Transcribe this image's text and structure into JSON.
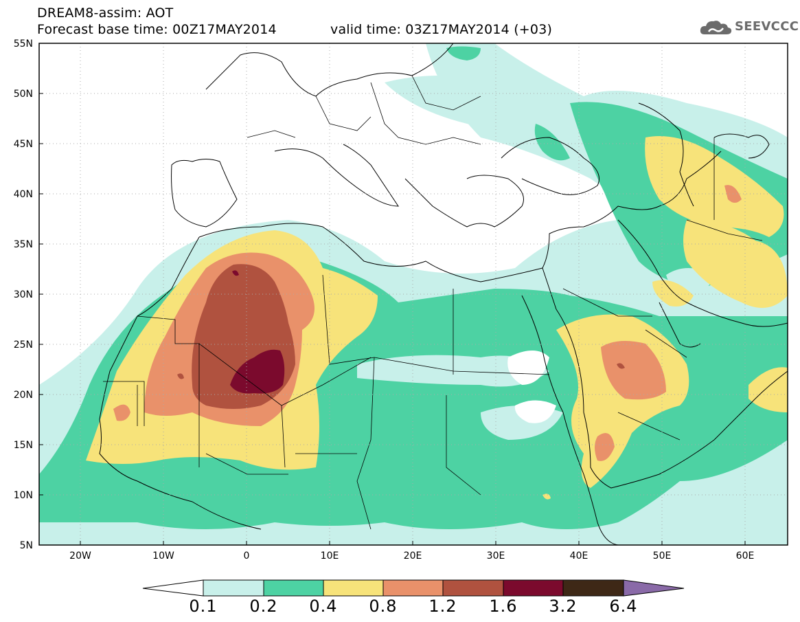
{
  "header": {
    "title": "DREAM8-assim: AOT",
    "base_time": "Forecast base time: 00Z17MAY2014",
    "valid_time": "valid time: 03Z17MAY2014 (+03)",
    "logo_text": "SEEVCCC",
    "logo_icon": "cloud-icon"
  },
  "map": {
    "lat_labels": [
      "55N",
      "50N",
      "45N",
      "40N",
      "35N",
      "30N",
      "25N",
      "20N",
      "15N",
      "10N",
      "5N"
    ],
    "lon_labels": [
      "20W",
      "10W",
      "0",
      "10E",
      "20E",
      "30E",
      "40E",
      "50E",
      "60E"
    ],
    "lon_range": [
      -25,
      65
    ],
    "lat_range": [
      5,
      55
    ]
  },
  "colorbar": {
    "labels": [
      "0.1",
      "0.2",
      "0.4",
      "0.8",
      "1.2",
      "1.6",
      "3.2",
      "6.4"
    ],
    "colors": [
      "#ffffff",
      "#c8f0ea",
      "#4dd2a3",
      "#f7e37a",
      "#e9916a",
      "#b0523f",
      "#7b0a2d",
      "#3e2816",
      "#8a6aa8"
    ]
  },
  "colors": {
    "c1": "#c8f0ea",
    "c2": "#4dd2a3",
    "c3": "#f7e37a",
    "c4": "#e9916a",
    "c5": "#b0523f",
    "c6": "#7b0a2d"
  }
}
